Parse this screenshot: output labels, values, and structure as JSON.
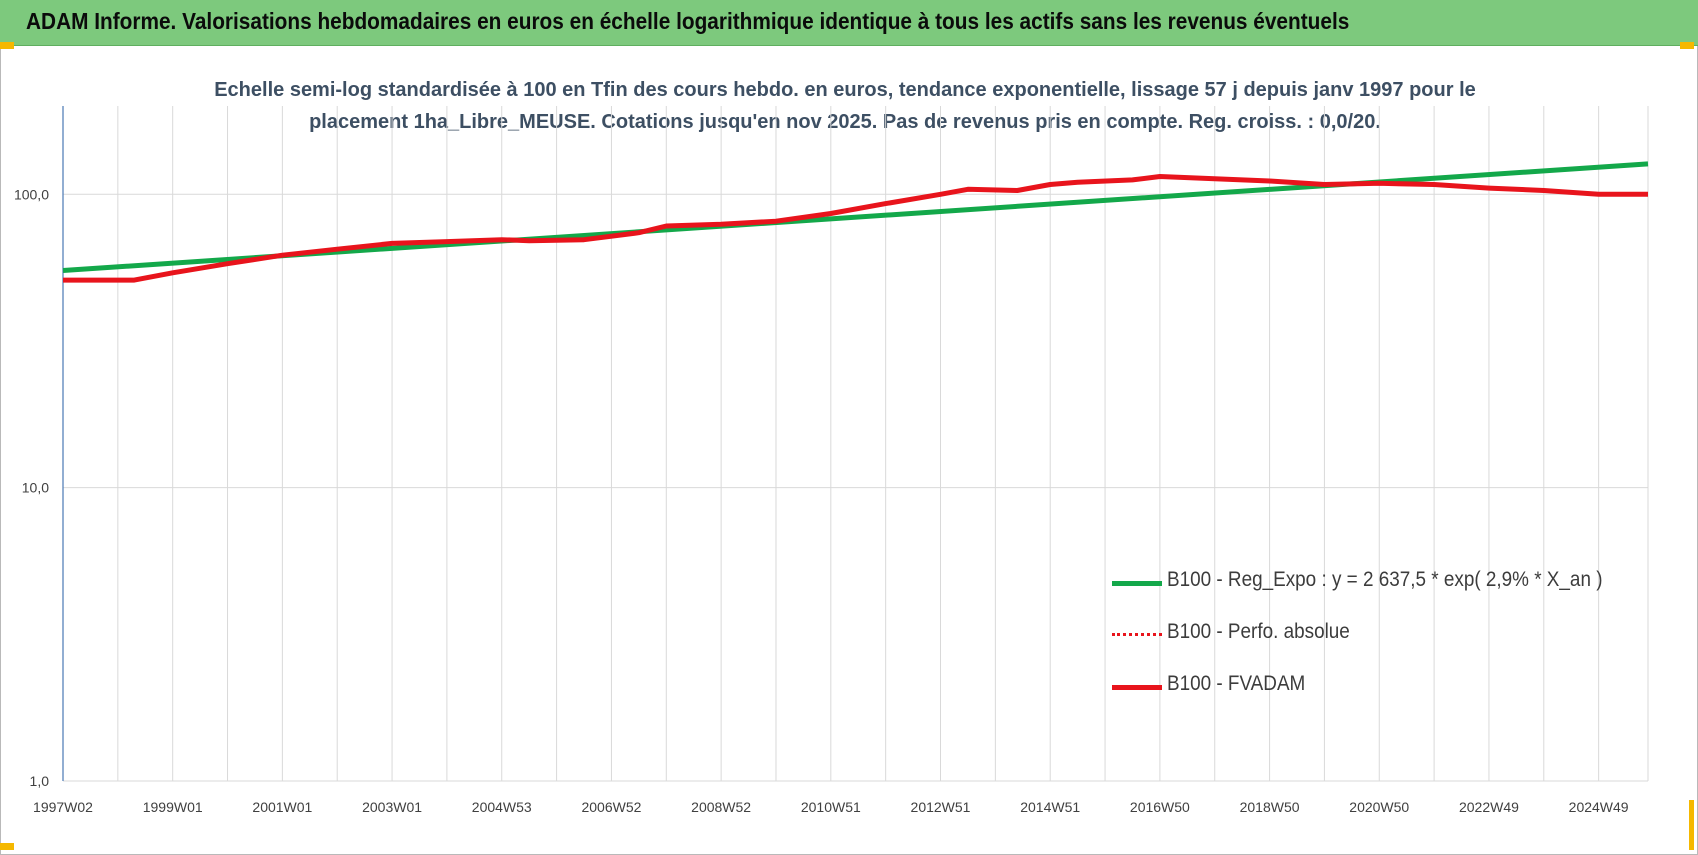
{
  "header": {
    "title": "ADAM Informe. Valorisations hebdomadaires en euros en échelle logarithmique identique à tous les actifs sans les revenus éventuels"
  },
  "colors": {
    "banner": "#7dc97d",
    "accent_corner": "#f5b800",
    "reg_expo": "#13a84a",
    "fvadam": "#e8141c",
    "perfo": "#e8141c",
    "axis": "#4a79b5",
    "grid": "#d9d9d9"
  },
  "chart_data": {
    "type": "line",
    "title_line1": "Echelle semi-log standardisée à 100 en Tfin des cours hebdo. en euros, tendance exponentielle, lissage 57 j depuis janv 1997 pour le",
    "title_line2": "placement 1ha_Libre_MEUSE. Cotations jusqu'en nov 2025. Pas de revenus pris en compte. Reg. croiss. : 0,0/20.",
    "y_scale": "log",
    "ylim": [
      1,
      200
    ],
    "y_ticks": [
      1,
      10,
      100
    ],
    "y_tick_labels": [
      "1,0",
      "10,0",
      "100,0"
    ],
    "x_range": [
      1997.0,
      2025.9
    ],
    "x_ticks": [
      1997.0,
      1999.0,
      2001.0,
      2003.0,
      2005.0,
      2007.0,
      2009.0,
      2011.0,
      2013.0,
      2015.0,
      2017.0,
      2019.0,
      2021.0,
      2023.0,
      2025.0
    ],
    "x_tick_labels": [
      "1997W02",
      "1999W01",
      "2001W01",
      "2003W01",
      "2004W53",
      "2006W52",
      "2008W52",
      "2010W51",
      "2012W51",
      "2014W51",
      "2016W50",
      "2018W50",
      "2020W50",
      "2022W49",
      "2024W49"
    ],
    "grid": "vertical and horizontal",
    "legend_position": "lower-right",
    "series": [
      {
        "name": "B100 - Reg_Expo : y = 2 637,5 * exp( 2,9% *  X_an )",
        "style": "solid-green",
        "x": [
          1997.0,
          2025.9
        ],
        "y": [
          55.0,
          127.0
        ]
      },
      {
        "name": "B100 - Perfo. absolue",
        "style": "dotted-red",
        "x": [],
        "y": []
      },
      {
        "name": "B100 - FVADAM",
        "style": "solid-red",
        "x": [
          1997.0,
          1998.3,
          1999.0,
          2000.0,
          2001.0,
          2002.0,
          2003.0,
          2004.0,
          2005.0,
          2005.5,
          2006.5,
          2007.5,
          2008.0,
          2009.0,
          2010.0,
          2011.0,
          2012.0,
          2013.0,
          2013.5,
          2014.4,
          2015.0,
          2015.5,
          2016.5,
          2017.0,
          2018.0,
          2019.0,
          2020.0,
          2021.0,
          2022.0,
          2023.0,
          2024.0,
          2025.0,
          2025.9
        ],
        "y": [
          51,
          51,
          54,
          58,
          62,
          65,
          68,
          69,
          70,
          69.5,
          70,
          74,
          78,
          79,
          81,
          86,
          93,
          100,
          104,
          103,
          108,
          110,
          112,
          115,
          113,
          111,
          108,
          109,
          108,
          105,
          103,
          100,
          100
        ]
      }
    ]
  }
}
